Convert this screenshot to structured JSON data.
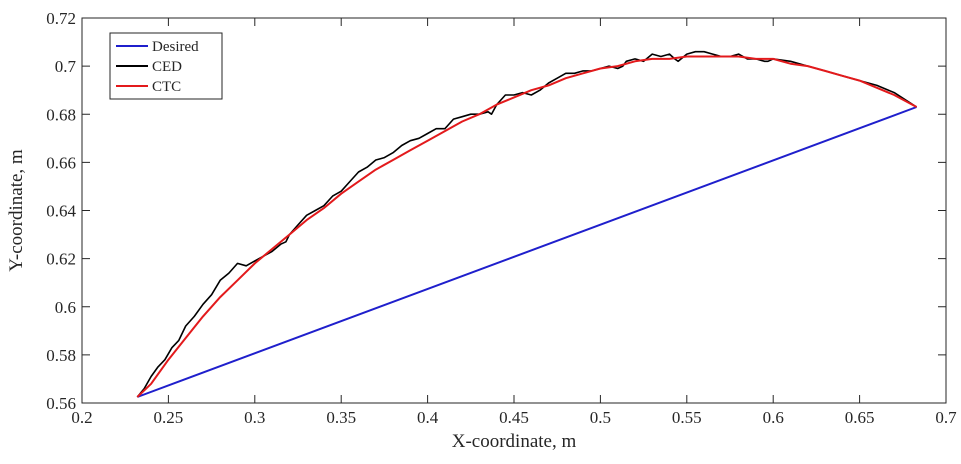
{
  "chart_data": {
    "type": "line",
    "title": "",
    "xlabel": "X-coordinate, m",
    "ylabel": "Y-coordinate, m",
    "xlim": [
      0.2,
      0.7
    ],
    "ylim": [
      0.56,
      0.72
    ],
    "xticks": [
      0.2,
      0.25,
      0.3,
      0.35,
      0.4,
      0.45,
      0.5,
      0.55,
      0.6,
      0.65,
      0.7
    ],
    "yticks": [
      0.56,
      0.58,
      0.6,
      0.62,
      0.64,
      0.66,
      0.68,
      0.7,
      0.72
    ],
    "xtick_labels": [
      "0.2",
      "0.25",
      "0.3",
      "0.35",
      "0.4",
      "0.45",
      "0.5",
      "0.55",
      "0.6",
      "0.65",
      "0.7"
    ],
    "ytick_labels": [
      "0.56",
      "0.58",
      "0.6",
      "0.62",
      "0.64",
      "0.66",
      "0.68",
      "0.7",
      "0.72"
    ],
    "grid": false,
    "legend_position": "top-left",
    "series": [
      {
        "name": "Desired",
        "color": "#1f1fcc",
        "x": [
          0.232,
          0.683
        ],
        "y": [
          0.5625,
          0.683
        ]
      },
      {
        "name": "CED",
        "color": "#000000",
        "x": [
          0.232,
          0.236,
          0.24,
          0.244,
          0.248,
          0.252,
          0.256,
          0.26,
          0.265,
          0.27,
          0.275,
          0.28,
          0.285,
          0.29,
          0.295,
          0.3,
          0.305,
          0.31,
          0.315,
          0.318,
          0.32,
          0.325,
          0.33,
          0.335,
          0.34,
          0.345,
          0.35,
          0.355,
          0.36,
          0.365,
          0.37,
          0.375,
          0.38,
          0.385,
          0.39,
          0.395,
          0.4,
          0.405,
          0.41,
          0.415,
          0.42,
          0.425,
          0.43,
          0.435,
          0.437,
          0.44,
          0.445,
          0.45,
          0.455,
          0.46,
          0.465,
          0.47,
          0.475,
          0.48,
          0.485,
          0.49,
          0.495,
          0.5,
          0.505,
          0.51,
          0.513,
          0.515,
          0.52,
          0.525,
          0.53,
          0.535,
          0.54,
          0.543,
          0.545,
          0.55,
          0.555,
          0.56,
          0.565,
          0.57,
          0.575,
          0.58,
          0.585,
          0.59,
          0.595,
          0.597,
          0.6,
          0.61,
          0.62,
          0.63,
          0.64,
          0.65,
          0.66,
          0.67,
          0.683
        ],
        "y": [
          0.5625,
          0.566,
          0.571,
          0.575,
          0.578,
          0.583,
          0.586,
          0.592,
          0.596,
          0.601,
          0.605,
          0.611,
          0.614,
          0.618,
          0.617,
          0.619,
          0.621,
          0.623,
          0.626,
          0.627,
          0.63,
          0.634,
          0.638,
          0.64,
          0.642,
          0.646,
          0.648,
          0.652,
          0.656,
          0.658,
          0.661,
          0.662,
          0.664,
          0.667,
          0.669,
          0.67,
          0.672,
          0.674,
          0.674,
          0.678,
          0.679,
          0.68,
          0.68,
          0.681,
          0.68,
          0.684,
          0.688,
          0.688,
          0.689,
          0.688,
          0.69,
          0.693,
          0.695,
          0.697,
          0.697,
          0.698,
          0.698,
          0.699,
          0.7,
          0.699,
          0.7,
          0.702,
          0.703,
          0.702,
          0.705,
          0.704,
          0.705,
          0.703,
          0.702,
          0.705,
          0.706,
          0.706,
          0.705,
          0.704,
          0.704,
          0.705,
          0.703,
          0.703,
          0.702,
          0.702,
          0.703,
          0.702,
          0.7,
          0.698,
          0.696,
          0.694,
          0.692,
          0.689,
          0.683
        ]
      },
      {
        "name": "CTC",
        "color": "#e31a1c",
        "x": [
          0.232,
          0.24,
          0.25,
          0.26,
          0.27,
          0.28,
          0.29,
          0.3,
          0.31,
          0.32,
          0.33,
          0.34,
          0.35,
          0.36,
          0.37,
          0.38,
          0.39,
          0.4,
          0.41,
          0.42,
          0.43,
          0.44,
          0.45,
          0.46,
          0.47,
          0.48,
          0.49,
          0.5,
          0.51,
          0.52,
          0.53,
          0.54,
          0.55,
          0.56,
          0.57,
          0.58,
          0.59,
          0.6,
          0.61,
          0.62,
          0.63,
          0.64,
          0.65,
          0.66,
          0.67,
          0.683
        ],
        "y": [
          0.5625,
          0.568,
          0.578,
          0.587,
          0.596,
          0.604,
          0.611,
          0.618,
          0.624,
          0.63,
          0.636,
          0.641,
          0.647,
          0.652,
          0.657,
          0.661,
          0.665,
          0.669,
          0.673,
          0.677,
          0.68,
          0.684,
          0.687,
          0.69,
          0.692,
          0.695,
          0.697,
          0.699,
          0.7,
          0.702,
          0.703,
          0.703,
          0.704,
          0.704,
          0.704,
          0.704,
          0.703,
          0.703,
          0.701,
          0.7,
          0.698,
          0.696,
          0.694,
          0.691,
          0.688,
          0.683
        ]
      }
    ]
  }
}
